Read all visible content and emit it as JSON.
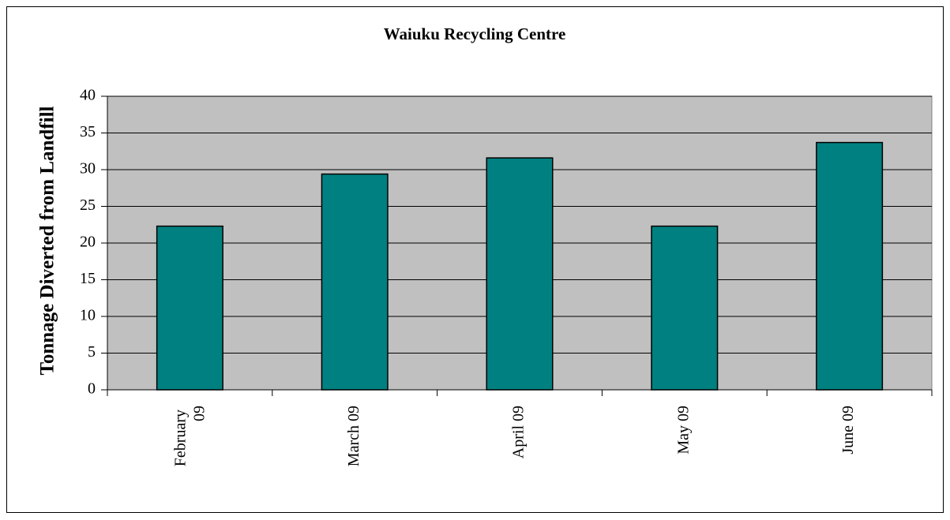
{
  "chart_data": {
    "type": "bar",
    "title": "Waiuku Recycling Centre",
    "y_label": "Tonnage Diverted from Landfill",
    "categories": [
      "February 09",
      "March 09",
      "April 09",
      "May 09",
      "June 09"
    ],
    "values": [
      22.3,
      29.4,
      31.6,
      22.3,
      33.7
    ],
    "color": "#008080",
    "ylim": [
      0,
      40
    ],
    "yticks": [
      0,
      5,
      10,
      15,
      20,
      25,
      30,
      35,
      40
    ],
    "grid": true
  }
}
